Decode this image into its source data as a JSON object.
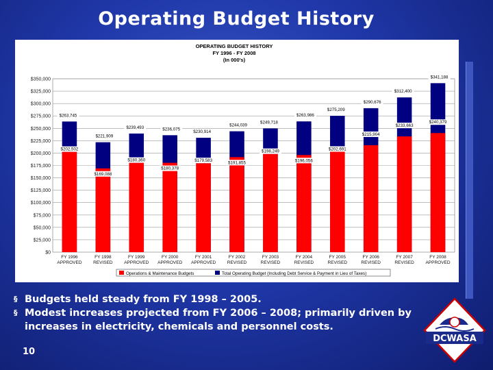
{
  "slide": {
    "title": "Operating Budget History",
    "page_number": "10",
    "bullets": [
      "Budgets held steady from FY 1998 – 2005.",
      "Modest increases projected from FY 2006 – 2008; primarily driven by increases in electricity, chemicals and personnel costs."
    ],
    "bullet_marker": "§"
  },
  "logo": {
    "text": "DCWASA",
    "icon": "dcwasa-logo-icon"
  },
  "colors": {
    "om": "#ff0000",
    "total": "#000080",
    "background": "#1f37a8"
  },
  "chart_data": {
    "type": "bar",
    "title_lines": [
      "OPERATING BUDGET HISTORY",
      "FY 1996 - FY 2008",
      "(In 000's)"
    ],
    "categories": [
      [
        "FY 1996",
        "APPROVED"
      ],
      [
        "FY 1998",
        "REVISED"
      ],
      [
        "FY 1999",
        "APPROVED"
      ],
      [
        "FY 2000",
        "APPROVED"
      ],
      [
        "FY 2001",
        "APPROVED"
      ],
      [
        "FY 2002",
        "REVISED"
      ],
      [
        "FY 2003",
        "REVISED"
      ],
      [
        "FY 2004",
        "REVISED"
      ],
      [
        "FY 2005",
        "REVISED"
      ],
      [
        "FY 2006",
        "REVISED"
      ],
      [
        "FY 2007",
        "REVISED"
      ],
      [
        "FY 2008",
        "APPROVED"
      ]
    ],
    "series": [
      {
        "name": "Operations & Maintenance Budgets",
        "color": "#ff0000",
        "values": [
          202502,
          169088,
          180360,
          180378,
          179583,
          191855,
          198249,
          196056,
          202691,
          215904,
          233663,
          240379
        ],
        "labels": [
          "$202,502",
          "$169,088",
          "$180,360",
          "$180,378",
          "$179,583",
          "$191,855",
          "$198,249",
          "$196,056",
          "$202,691",
          "$215,904",
          "$233,663",
          "$240,379"
        ]
      },
      {
        "name": "Total Operating Budget (Including Debt Service & Payment in Lieu of Taxes)",
        "color": "#000080",
        "values": [
          263745,
          221909,
          239493,
          236075,
          230914,
          244039,
          249718,
          263986,
          275209,
          290676,
          312400,
          341188
        ],
        "labels": [
          "$263,745",
          "$221,909",
          "$239,493",
          "$236,075",
          "$230,914",
          "$244,039",
          "$249,718",
          "$263,986",
          "$275,209",
          "$290,676",
          "$312,400",
          "$341,188"
        ]
      }
    ],
    "y_ticks": [
      0,
      25000,
      50000,
      75000,
      100000,
      125000,
      150000,
      175000,
      200000,
      225000,
      250000,
      275000,
      300000,
      325000,
      350000
    ],
    "y_tick_labels": [
      "$0",
      "$25,000",
      "$50,000",
      "$75,000",
      "$100,000",
      "$125,000",
      "$150,000",
      "$175,000",
      "$200,000",
      "$225,000",
      "$250,000",
      "$275,000",
      "$300,000",
      "$325,000",
      "$350,000"
    ],
    "ylim": [
      0,
      350000
    ],
    "grid": true,
    "legend_position": "bottom"
  }
}
